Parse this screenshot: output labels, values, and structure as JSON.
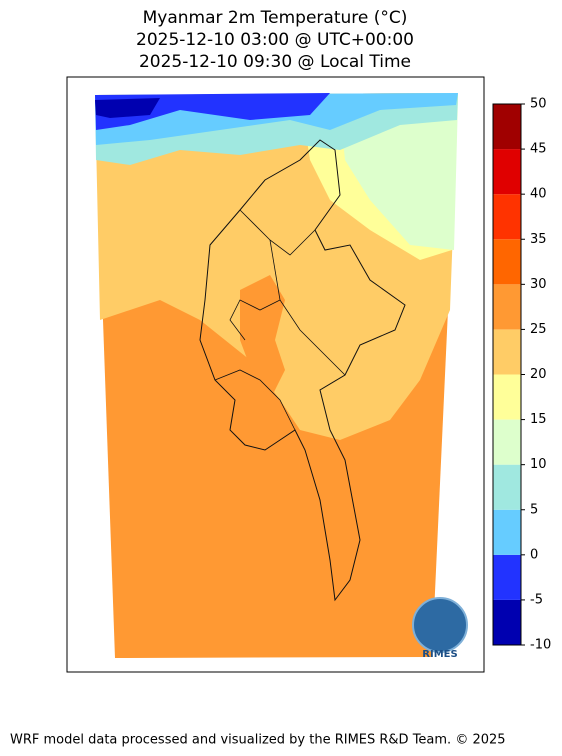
{
  "title": [
    "Myanmar 2m Temperature (°C)",
    "2025-12-10 03:00 @ UTC+00:00",
    "2025-12-10 09:30 @ Local Time"
  ],
  "colorbar": {
    "levels": [
      -10,
      -5,
      0,
      5,
      10,
      15,
      20,
      25,
      30,
      35,
      40,
      45,
      50
    ],
    "colors": [
      "#0000b0",
      "#2233ff",
      "#66ccff",
      "#a0e8e0",
      "#ddffcc",
      "#ffff99",
      "#ffcc66",
      "#ff9933",
      "#ff6600",
      "#ff3300",
      "#e00000",
      "#a00000"
    ]
  },
  "logo": "RIMES",
  "footer": "WRF model data processed and visualized by the RIMES R&D Team. © 2025"
}
